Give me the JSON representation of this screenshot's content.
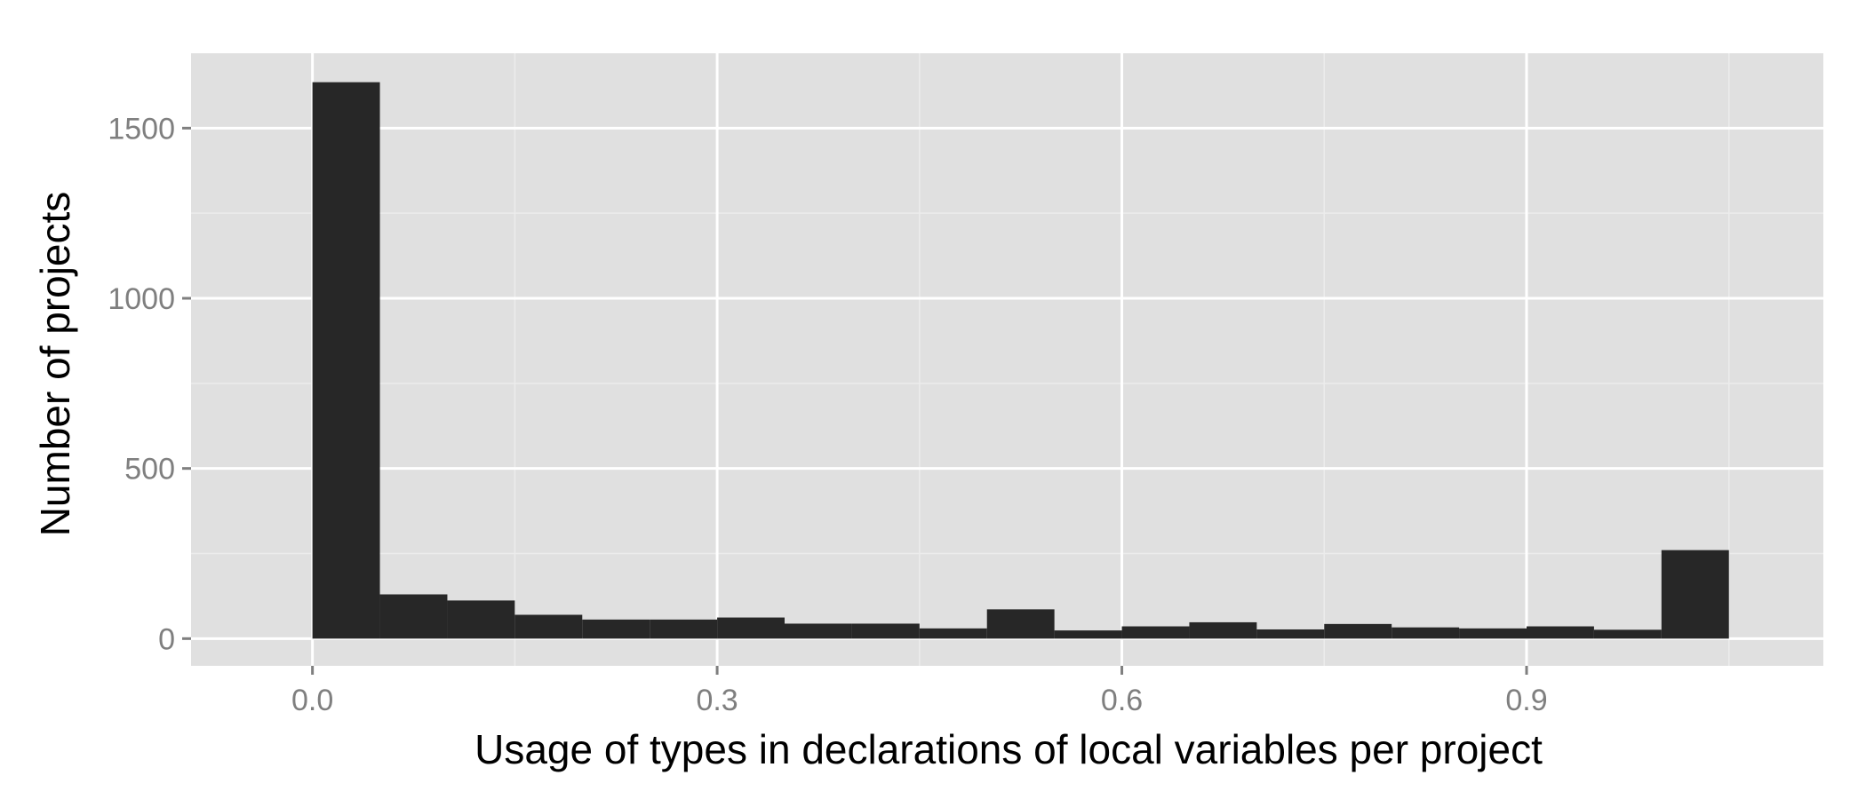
{
  "chart_data": {
    "type": "bar",
    "title": "",
    "xlabel": "Usage of types in declarations of local variables per project",
    "ylabel": "Number of projects",
    "xlim": [
      -0.09,
      1.12
    ],
    "ylim": [
      -80,
      1720
    ],
    "x_ticks": [
      {
        "value": 0.0,
        "label": "0.0"
      },
      {
        "value": 0.3,
        "label": "0.3"
      },
      {
        "value": 0.6,
        "label": "0.6"
      },
      {
        "value": 0.9,
        "label": "0.9"
      }
    ],
    "y_ticks": [
      {
        "value": 0,
        "label": "0"
      },
      {
        "value": 500,
        "label": "500"
      },
      {
        "value": 1000,
        "label": "1000"
      },
      {
        "value": 1500,
        "label": "1500"
      }
    ],
    "bin_width": 0.05,
    "bins": [
      {
        "start": 0.0,
        "count": 1635
      },
      {
        "start": 0.05,
        "count": 130
      },
      {
        "start": 0.1,
        "count": 112
      },
      {
        "start": 0.15,
        "count": 70
      },
      {
        "start": 0.2,
        "count": 56
      },
      {
        "start": 0.25,
        "count": 56
      },
      {
        "start": 0.3,
        "count": 62
      },
      {
        "start": 0.35,
        "count": 44
      },
      {
        "start": 0.4,
        "count": 44
      },
      {
        "start": 0.45,
        "count": 30
      },
      {
        "start": 0.5,
        "count": 86
      },
      {
        "start": 0.55,
        "count": 24
      },
      {
        "start": 0.6,
        "count": 36
      },
      {
        "start": 0.65,
        "count": 48
      },
      {
        "start": 0.7,
        "count": 27
      },
      {
        "start": 0.75,
        "count": 43
      },
      {
        "start": 0.8,
        "count": 33
      },
      {
        "start": 0.85,
        "count": 30
      },
      {
        "start": 0.9,
        "count": 36
      },
      {
        "start": 0.95,
        "count": 26
      },
      {
        "start": 1.0,
        "count": 260
      }
    ],
    "grid": true,
    "legend": "none",
    "colors": {
      "panel_background": "#e0e0e0",
      "major_grid": "#ffffff",
      "minor_grid": "#ececec",
      "bar_fill": "#272727",
      "tick_label": "#7f7f7f",
      "axis_title": "#000000",
      "tick_mark": "#7f7f7f"
    }
  }
}
